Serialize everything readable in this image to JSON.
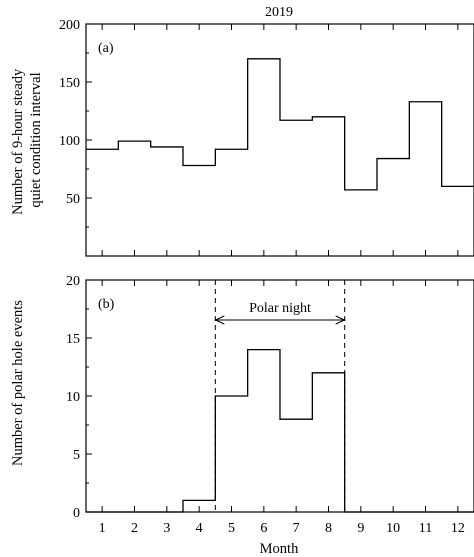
{
  "chart_data": [
    {
      "panel": "(a)",
      "type": "step",
      "title": "2019",
      "ylabel_lines": [
        "Number of 9-hour steady",
        "quiet condition interval"
      ],
      "xlabel": "",
      "x": [
        1,
        2,
        3,
        4,
        5,
        6,
        7,
        8,
        9,
        10,
        11,
        12
      ],
      "values": [
        92,
        99,
        94,
        78,
        92,
        170,
        117,
        120,
        57,
        84,
        133,
        60
      ],
      "xlim": [
        0.5,
        12.5
      ],
      "ylim": [
        0,
        200
      ],
      "yticks": [
        0,
        50,
        100,
        150,
        200
      ],
      "ytick_labels": [
        "",
        "50",
        "100",
        "150",
        "200"
      ]
    },
    {
      "panel": "(b)",
      "type": "step",
      "ylabel_lines": [
        "Number of polar hole events"
      ],
      "xlabel": "Month",
      "x": [
        1,
        2,
        3,
        4,
        5,
        6,
        7,
        8,
        9,
        10,
        11,
        12
      ],
      "values": [
        0,
        0,
        0,
        1,
        10,
        14,
        8,
        12,
        0,
        0,
        0,
        0
      ],
      "xlim": [
        0.5,
        12.5
      ],
      "ylim": [
        0,
        20
      ],
      "yticks": [
        0,
        5,
        10,
        15,
        20
      ],
      "ytick_labels": [
        "0",
        "5",
        "10",
        "15",
        "20"
      ],
      "xtick_labels": [
        "1",
        "2",
        "3",
        "4",
        "5",
        "6",
        "7",
        "8",
        "9",
        "10",
        "11",
        "12"
      ],
      "annotation": {
        "text": "Polar night",
        "x_start": 4.5,
        "x_end": 8.5
      }
    }
  ]
}
